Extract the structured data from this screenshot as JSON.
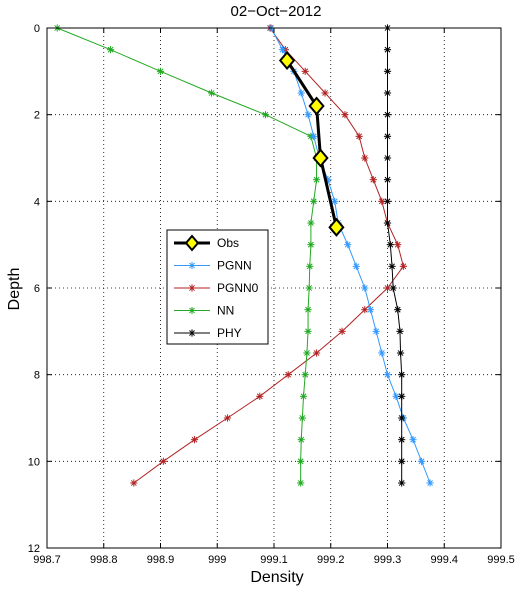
{
  "chart_data": {
    "type": "line",
    "title": "02−Oct−2012",
    "xlabel": "Density",
    "ylabel": "Depth",
    "xlim": [
      998.7,
      999.5
    ],
    "ylim": [
      12,
      0
    ],
    "y_inverted": true,
    "grid": true,
    "legend_position": "center-left",
    "xticks": [
      998.7,
      998.8,
      998.9,
      999,
      999.1,
      999.2,
      999.3,
      999.4,
      999.5
    ],
    "xtick_labels": [
      "998.7",
      "998.8",
      "998.9",
      "999",
      "999.1",
      "999.2",
      "999.3",
      "999.4",
      "999.5"
    ],
    "yticks": [
      0,
      2,
      4,
      6,
      8,
      10,
      12
    ],
    "ytick_labels": [
      "0",
      "2",
      "4",
      "6",
      "8",
      "10",
      "12"
    ],
    "series": [
      {
        "name": "Obs",
        "color": "#000000",
        "marker": "diamond",
        "marker_fill": "#ffff00",
        "line_width": 3,
        "points": [
          [
            999.123,
            0.75
          ],
          [
            999.175,
            1.8
          ],
          [
            999.182,
            3.0
          ],
          [
            999.21,
            4.6
          ]
        ]
      },
      {
        "name": "PGNN",
        "color": "#3399ff",
        "marker": "asterisk",
        "line_width": 1,
        "points": [
          [
            999.095,
            0.0
          ],
          [
            999.115,
            0.5
          ],
          [
            999.135,
            1.0
          ],
          [
            999.148,
            1.5
          ],
          [
            999.16,
            2.0
          ],
          [
            999.17,
            2.5
          ],
          [
            999.18,
            3.0
          ],
          [
            999.195,
            3.5
          ],
          [
            999.207,
            4.0
          ],
          [
            999.213,
            4.5
          ],
          [
            999.23,
            5.0
          ],
          [
            999.245,
            5.5
          ],
          [
            999.26,
            6.0
          ],
          [
            999.27,
            6.5
          ],
          [
            999.28,
            7.0
          ],
          [
            999.29,
            7.5
          ],
          [
            999.3,
            8.0
          ],
          [
            999.315,
            8.5
          ],
          [
            999.328,
            9.0
          ],
          [
            999.345,
            9.5
          ],
          [
            999.36,
            10.0
          ],
          [
            999.375,
            10.5
          ]
        ]
      },
      {
        "name": "PGNN0",
        "color": "#b22222",
        "marker": "asterisk",
        "line_width": 1,
        "points": [
          [
            999.093,
            0.0
          ],
          [
            999.12,
            0.5
          ],
          [
            999.155,
            1.0
          ],
          [
            999.19,
            1.5
          ],
          [
            999.225,
            2.0
          ],
          [
            999.25,
            2.5
          ],
          [
            999.26,
            3.0
          ],
          [
            999.275,
            3.5
          ],
          [
            999.29,
            4.0
          ],
          [
            999.3,
            4.5
          ],
          [
            999.318,
            5.0
          ],
          [
            999.328,
            5.5
          ],
          [
            999.3,
            6.0
          ],
          [
            999.26,
            6.5
          ],
          [
            999.22,
            7.0
          ],
          [
            999.175,
            7.5
          ],
          [
            999.125,
            8.0
          ],
          [
            999.075,
            8.5
          ],
          [
            999.018,
            9.0
          ],
          [
            998.96,
            9.5
          ],
          [
            998.905,
            10.0
          ],
          [
            998.853,
            10.5
          ]
        ]
      },
      {
        "name": "NN",
        "color": "#22aa22",
        "marker": "asterisk",
        "line_width": 1,
        "points": [
          [
            998.718,
            0.0
          ],
          [
            998.812,
            0.5
          ],
          [
            998.9,
            1.0
          ],
          [
            998.99,
            1.5
          ],
          [
            999.085,
            2.0
          ],
          [
            999.165,
            2.5
          ],
          [
            999.175,
            3.0
          ],
          [
            999.175,
            3.5
          ],
          [
            999.17,
            4.0
          ],
          [
            999.165,
            4.5
          ],
          [
            999.165,
            5.0
          ],
          [
            999.163,
            5.5
          ],
          [
            999.162,
            6.0
          ],
          [
            999.16,
            6.5
          ],
          [
            999.16,
            7.0
          ],
          [
            999.158,
            7.5
          ],
          [
            999.155,
            8.0
          ],
          [
            999.152,
            8.5
          ],
          [
            999.15,
            9.0
          ],
          [
            999.148,
            9.5
          ],
          [
            999.147,
            10.0
          ],
          [
            999.147,
            10.5
          ]
        ]
      },
      {
        "name": "PHY",
        "color": "#000000",
        "marker": "asterisk",
        "line_width": 1,
        "points": [
          [
            999.3,
            0.0
          ],
          [
            999.3,
            0.5
          ],
          [
            999.3,
            1.0
          ],
          [
            999.3,
            1.5
          ],
          [
            999.3,
            2.0
          ],
          [
            999.3,
            2.5
          ],
          [
            999.3,
            3.0
          ],
          [
            999.3,
            3.5
          ],
          [
            999.3,
            4.0
          ],
          [
            999.3,
            4.5
          ],
          [
            999.305,
            5.0
          ],
          [
            999.308,
            5.5
          ],
          [
            999.31,
            6.0
          ],
          [
            999.318,
            6.5
          ],
          [
            999.322,
            7.0
          ],
          [
            999.323,
            7.5
          ],
          [
            999.325,
            8.0
          ],
          [
            999.325,
            8.5
          ],
          [
            999.325,
            9.0
          ],
          [
            999.325,
            9.5
          ],
          [
            999.325,
            10.0
          ],
          [
            999.325,
            10.5
          ]
        ]
      }
    ]
  }
}
